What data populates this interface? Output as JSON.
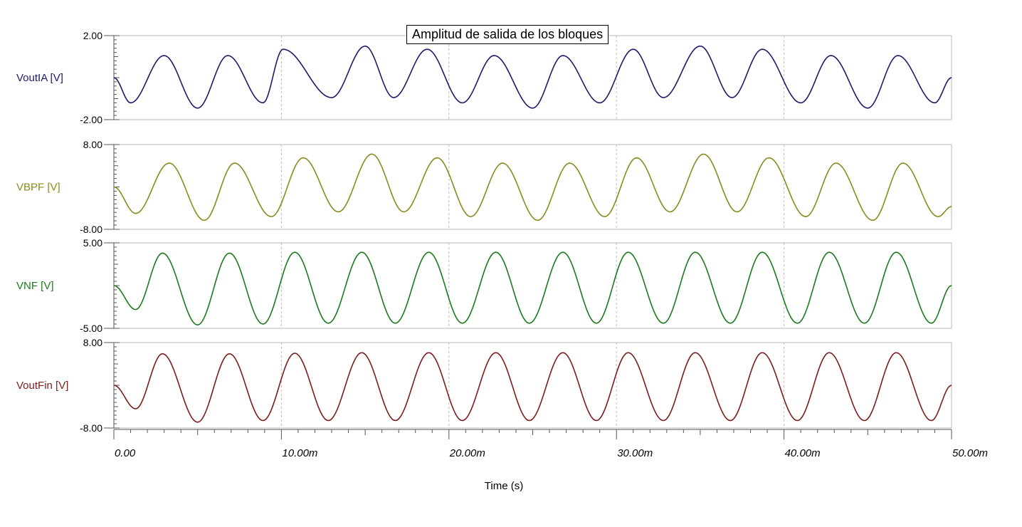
{
  "chart_data": {
    "type": "line",
    "title": "Amplitud de salida de los bloques",
    "xlabel": "Time (s)",
    "xlim": [
      0,
      0.05
    ],
    "x_tick_labels": [
      "0.00",
      "10.00m",
      "20.00m",
      "30.00m",
      "40.00m",
      "50.00m"
    ],
    "x_ticks": [
      0,
      0.01,
      0.02,
      0.03,
      0.04,
      0.05
    ],
    "signal_period": 0.004,
    "panels": [
      {
        "name": "VoutIA [V]",
        "color": "#1c1a6b",
        "ylim": [
          -2,
          2
        ],
        "y_tick_labels": [
          "2.00",
          "-2.00"
        ],
        "peak_times": [
          0.003,
          0.0068,
          0.0101,
          0.015,
          0.0187,
          0.0227,
          0.0268,
          0.031,
          0.035,
          0.0387,
          0.0428,
          0.0468
        ],
        "peak_values": [
          1.05,
          1.05,
          1.35,
          1.5,
          1.35,
          1.05,
          1.05,
          1.35,
          1.5,
          1.35,
          1.05,
          1.05
        ],
        "trough_times": [
          0.001,
          0.005,
          0.0089,
          0.013,
          0.0167,
          0.0208,
          0.025,
          0.029,
          0.0328,
          0.0369,
          0.041,
          0.045,
          0.049
        ],
        "trough_values": [
          -1.2,
          -1.45,
          -1.2,
          -0.95,
          -0.95,
          -1.2,
          -1.45,
          -1.2,
          -0.95,
          -0.95,
          -1.2,
          -1.45,
          -1.2
        ],
        "start_value": 0.0,
        "end_value": 0.0
      },
      {
        "name": "VBPF [V]",
        "color": "#8a8a1e",
        "ylim": [
          -8,
          8
        ],
        "y_tick_labels": [
          "8.00",
          "-8.00"
        ],
        "peak_times": [
          0.0033,
          0.0072,
          0.0113,
          0.0154,
          0.0193,
          0.0232,
          0.0272,
          0.0312,
          0.0352,
          0.0391,
          0.0431,
          0.0471
        ],
        "peak_values": [
          4.5,
          4.5,
          5.5,
          6.2,
          5.5,
          4.5,
          4.5,
          5.5,
          6.2,
          5.5,
          4.5,
          4.5
        ],
        "trough_times": [
          0.0013,
          0.0054,
          0.0094,
          0.0134,
          0.0173,
          0.0213,
          0.0253,
          0.0293,
          0.0332,
          0.0372,
          0.0413,
          0.0453,
          0.0492
        ],
        "trough_values": [
          -5.0,
          -6.3,
          -5.6,
          -4.7,
          -4.7,
          -5.6,
          -6.3,
          -5.6,
          -4.7,
          -4.7,
          -5.6,
          -6.3,
          -5.6
        ],
        "start_value": 0.0,
        "end_value": -3.7
      },
      {
        "name": "VNF [V]",
        "color": "#1c7a1c",
        "ylim": [
          -5,
          5
        ],
        "y_tick_labels": [
          "5.00",
          "-5.00"
        ],
        "peak_times": [
          0.0029,
          0.0069,
          0.0108,
          0.0148,
          0.0188,
          0.0228,
          0.0268,
          0.0307,
          0.0347,
          0.0387,
          0.0427,
          0.0467
        ],
        "peak_values": [
          3.8,
          3.8,
          3.9,
          3.9,
          3.9,
          3.9,
          3.9,
          3.9,
          3.9,
          3.9,
          3.9,
          3.9
        ],
        "trough_times": [
          0.0013,
          0.005,
          0.0089,
          0.0128,
          0.0168,
          0.0208,
          0.0248,
          0.0288,
          0.0328,
          0.0368,
          0.0408,
          0.0448,
          0.0488
        ],
        "trough_values": [
          -2.8,
          -4.6,
          -4.5,
          -4.4,
          -4.4,
          -4.4,
          -4.4,
          -4.4,
          -4.4,
          -4.4,
          -4.4,
          -4.4,
          -4.4
        ],
        "start_value": 0.0,
        "end_value": 0.0
      },
      {
        "name": "VoutFin [V]",
        "color": "#7a1c1c",
        "ylim": [
          -8,
          8
        ],
        "y_tick_labels": [
          "8.00",
          "-8.00"
        ],
        "peak_times": [
          0.0029,
          0.0069,
          0.0108,
          0.0148,
          0.0188,
          0.0228,
          0.0268,
          0.0307,
          0.0347,
          0.0387,
          0.0427,
          0.0467
        ],
        "peak_values": [
          5.9,
          5.9,
          6.0,
          6.1,
          6.1,
          6.1,
          6.1,
          6.1,
          6.1,
          6.1,
          6.1,
          6.1
        ],
        "trough_times": [
          0.0013,
          0.005,
          0.0089,
          0.0128,
          0.0168,
          0.0208,
          0.0248,
          0.0288,
          0.0328,
          0.0368,
          0.0408,
          0.0448,
          0.0488
        ],
        "trough_values": [
          -4.4,
          -6.9,
          -6.6,
          -6.6,
          -6.6,
          -6.6,
          -6.6,
          -6.6,
          -6.6,
          -6.6,
          -6.6,
          -6.6,
          -6.6
        ],
        "start_value": 0.0,
        "end_value": 0.0
      }
    ]
  }
}
